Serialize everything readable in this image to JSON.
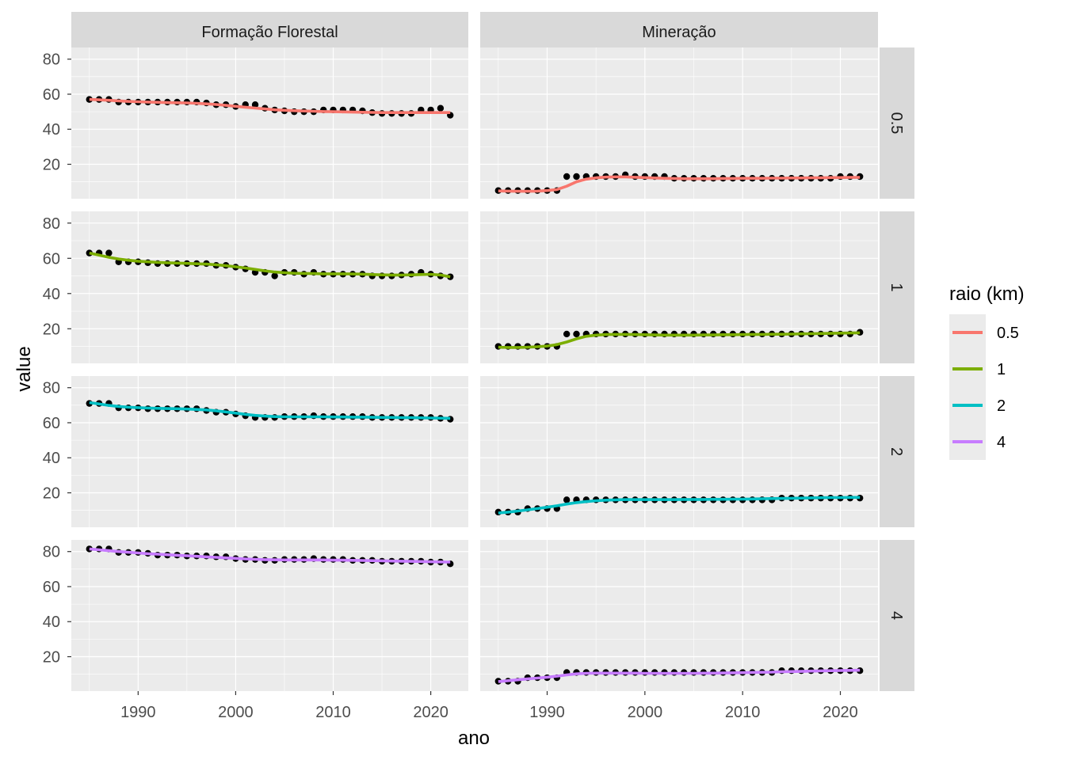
{
  "chart_data": {
    "type": "line",
    "facet_columns": [
      "Formação Florestal",
      "Mineração"
    ],
    "facet_rows": [
      "0.5",
      "1",
      "2",
      "4"
    ],
    "xlabel": "ano",
    "ylabel": "value",
    "xlim": [
      1983.15,
      2023.85
    ],
    "ylim": [
      0.35,
      86.65
    ],
    "x_ticks": [
      1990,
      2000,
      2010,
      2020
    ],
    "y_ticks": [
      20,
      40,
      60,
      80
    ],
    "grid": true,
    "legend": {
      "title": "raio (km)",
      "position": "right",
      "entries": [
        {
          "label": "0.5",
          "color": "#F8766D"
        },
        {
          "label": "1",
          "color": "#7CAE00"
        },
        {
          "label": "2",
          "color": "#00BFC4"
        },
        {
          "label": "4",
          "color": "#C77CFF"
        }
      ]
    },
    "x": [
      1985,
      1986,
      1987,
      1988,
      1989,
      1990,
      1991,
      1992,
      1993,
      1994,
      1995,
      1996,
      1997,
      1998,
      1999,
      2000,
      2001,
      2002,
      2003,
      2004,
      2005,
      2006,
      2007,
      2008,
      2009,
      2010,
      2011,
      2012,
      2013,
      2014,
      2015,
      2016,
      2017,
      2018,
      2019,
      2020,
      2021,
      2022
    ],
    "panels": [
      {
        "column": "Formação Florestal",
        "row": "0.5",
        "color": "#F8766D",
        "values": [
          57,
          57,
          57,
          55.5,
          55.5,
          55.5,
          55.5,
          55.5,
          55.5,
          55.5,
          55.5,
          55.5,
          55,
          54,
          54,
          53,
          54,
          54,
          52,
          51,
          50.5,
          50,
          50,
          50,
          51,
          51,
          51,
          51,
          50.5,
          49.5,
          49,
          49,
          49,
          49,
          51,
          51,
          52,
          48
        ],
        "smooth": [
          57,
          56.8,
          56.5,
          56.2,
          55.9,
          55.7,
          55.5,
          55.4,
          55.2,
          55.1,
          55,
          54.8,
          54.5,
          54.1,
          53.6,
          53.1,
          52.6,
          52.1,
          51.6,
          51.1,
          50.8,
          50.6,
          50.4,
          50.3,
          50.1,
          50,
          49.9,
          49.8,
          49.7,
          49.6,
          49.5,
          49.5,
          49.5,
          49.5,
          49.5,
          49.5,
          49.5,
          49.5
        ]
      },
      {
        "column": "Mineração",
        "row": "0.5",
        "color": "#F8766D",
        "values": [
          5,
          5,
          5,
          5,
          5,
          5,
          5,
          13,
          13,
          13,
          13,
          13,
          13,
          14,
          13,
          13,
          13,
          13,
          12,
          12,
          12,
          12,
          12,
          12,
          12,
          12,
          12,
          12,
          12,
          12,
          12,
          12,
          12,
          12,
          12,
          13,
          13,
          13
        ],
        "smooth": [
          4.8,
          4.7,
          4.6,
          4.6,
          4.7,
          5,
          5.6,
          7.5,
          10,
          11.5,
          12.3,
          12.7,
          12.8,
          12.8,
          12.6,
          12.4,
          12.2,
          12,
          11.9,
          11.8,
          11.8,
          11.8,
          11.8,
          11.9,
          11.9,
          12,
          12,
          12,
          12.1,
          12.1,
          12.2,
          12.2,
          12.3,
          12.3,
          12.4,
          12.4,
          12.5,
          12.5
        ]
      },
      {
        "column": "Formação Florestal",
        "row": "1",
        "color": "#7CAE00",
        "values": [
          63,
          63,
          63,
          58,
          58,
          58,
          57.5,
          57,
          57,
          57,
          57,
          57,
          57,
          56,
          56,
          55,
          54,
          52,
          52,
          50,
          52,
          52,
          51,
          52,
          51,
          51,
          51,
          51,
          51,
          50,
          50,
          50,
          50.5,
          51,
          52,
          51,
          50,
          49.5
        ],
        "smooth": [
          63,
          61.8,
          60.6,
          59.6,
          58.9,
          58.4,
          58,
          57.7,
          57.5,
          57.3,
          57.1,
          56.9,
          56.7,
          56.3,
          55.8,
          55.2,
          54.5,
          53.7,
          52.9,
          52.2,
          51.8,
          51.5,
          51.4,
          51.3,
          51.2,
          51.2,
          51.2,
          51.1,
          51,
          50.8,
          50.6,
          50.5,
          50.5,
          50.6,
          50.8,
          50.9,
          50.5,
          49.5
        ]
      },
      {
        "column": "Mineração",
        "row": "1",
        "color": "#7CAE00",
        "values": [
          10,
          10,
          10,
          10,
          10,
          10,
          10,
          17,
          17,
          17,
          17,
          17,
          17,
          17,
          17,
          17,
          17,
          17,
          17,
          17,
          17,
          17,
          17,
          17,
          17,
          17,
          17,
          17,
          17,
          17,
          17,
          17,
          17,
          17,
          17,
          17,
          17,
          18
        ],
        "smooth": [
          9.5,
          9.4,
          9.4,
          9.5,
          9.8,
          10.2,
          11,
          12.5,
          14.3,
          15.7,
          16.4,
          16.7,
          16.8,
          16.8,
          16.7,
          16.6,
          16.5,
          16.4,
          16.4,
          16.4,
          16.4,
          16.5,
          16.5,
          16.6,
          16.6,
          16.7,
          16.8,
          16.8,
          16.9,
          16.9,
          17,
          17.1,
          17.2,
          17.3,
          17.4,
          17.5,
          17.6,
          17.7
        ]
      },
      {
        "column": "Formação Florestal",
        "row": "2",
        "color": "#00BFC4",
        "values": [
          71,
          71,
          71,
          68.5,
          68.5,
          68.5,
          68,
          68,
          68,
          68,
          68,
          68,
          67,
          66,
          66,
          65,
          64,
          63,
          63,
          63,
          63.5,
          63.5,
          63.5,
          64,
          63.5,
          63.5,
          63.5,
          63.5,
          63.5,
          63,
          63,
          63,
          63,
          63,
          63,
          63,
          62.5,
          62
        ],
        "smooth": [
          71.5,
          70.7,
          69.9,
          69.3,
          68.9,
          68.6,
          68.4,
          68.2,
          68.1,
          68,
          67.8,
          67.6,
          67.3,
          66.8,
          66.2,
          65.5,
          64.8,
          64.2,
          63.8,
          63.5,
          63.4,
          63.4,
          63.4,
          63.4,
          63.4,
          63.3,
          63.3,
          63.2,
          63.2,
          63.1,
          63,
          63,
          62.9,
          62.9,
          62.8,
          62.7,
          62.6,
          62.5
        ]
      },
      {
        "column": "Mineração",
        "row": "2",
        "color": "#00BFC4",
        "values": [
          9,
          9,
          9,
          11,
          11,
          11,
          11,
          16,
          16,
          16,
          16,
          16,
          16,
          16,
          16,
          16,
          16,
          16,
          16,
          16,
          16,
          16,
          16,
          16,
          16,
          16,
          16,
          16,
          16,
          17,
          17,
          17,
          17,
          17,
          17,
          17,
          17,
          17
        ],
        "smooth": [
          8.5,
          9,
          9.6,
          10.3,
          11,
          11.8,
          12.6,
          13.6,
          14.4,
          15,
          15.5,
          15.8,
          16,
          16.1,
          16.1,
          16.1,
          16.1,
          16.1,
          16.1,
          16.2,
          16.2,
          16.2,
          16.3,
          16.3,
          16.4,
          16.4,
          16.5,
          16.6,
          16.7,
          16.8,
          16.9,
          17,
          17.1,
          17.2,
          17.3,
          17.3,
          17.4,
          17.4
        ]
      },
      {
        "column": "Formação Florestal",
        "row": "4",
        "color": "#C77CFF",
        "values": [
          81.5,
          81.5,
          81.5,
          79.5,
          79.5,
          79.5,
          79,
          78,
          78,
          78,
          77.5,
          77.5,
          77.5,
          77,
          77,
          76,
          75.5,
          75.5,
          75,
          75,
          75.5,
          75.5,
          75.5,
          76,
          75.5,
          75.5,
          75.5,
          75,
          75,
          75,
          74.5,
          74.5,
          74.5,
          74.5,
          74.5,
          74,
          74,
          73
        ],
        "smooth": [
          81.5,
          81,
          80.5,
          80,
          79.6,
          79.2,
          78.8,
          78.5,
          78.2,
          77.9,
          77.6,
          77.3,
          77,
          76.7,
          76.4,
          76.1,
          75.8,
          75.6,
          75.4,
          75.3,
          75.2,
          75.2,
          75.2,
          75.2,
          75.2,
          75.1,
          75.1,
          75,
          74.9,
          74.8,
          74.7,
          74.6,
          74.5,
          74.4,
          74.3,
          74.2,
          74.1,
          74
        ]
      },
      {
        "column": "Mineração",
        "row": "4",
        "color": "#C77CFF",
        "values": [
          6,
          6,
          6,
          8,
          8,
          8,
          8,
          11,
          11,
          11,
          11,
          11,
          11,
          11,
          11,
          11,
          11,
          11,
          11,
          11,
          11,
          11,
          11,
          11,
          11,
          11,
          11,
          11,
          11,
          12,
          12,
          12,
          12,
          12,
          12,
          12,
          12,
          12
        ],
        "smooth": [
          5.8,
          6.3,
          6.8,
          7.3,
          7.8,
          8.3,
          8.9,
          9.6,
          10.2,
          10.5,
          10.6,
          10.6,
          10.6,
          10.6,
          10.6,
          10.5,
          10.5,
          10.5,
          10.5,
          10.5,
          10.5,
          10.6,
          10.6,
          10.7,
          10.8,
          10.9,
          11,
          11.1,
          11.2,
          11.4,
          11.5,
          11.6,
          11.8,
          11.9,
          12,
          12.1,
          12.2,
          12.3
        ]
      }
    ]
  }
}
